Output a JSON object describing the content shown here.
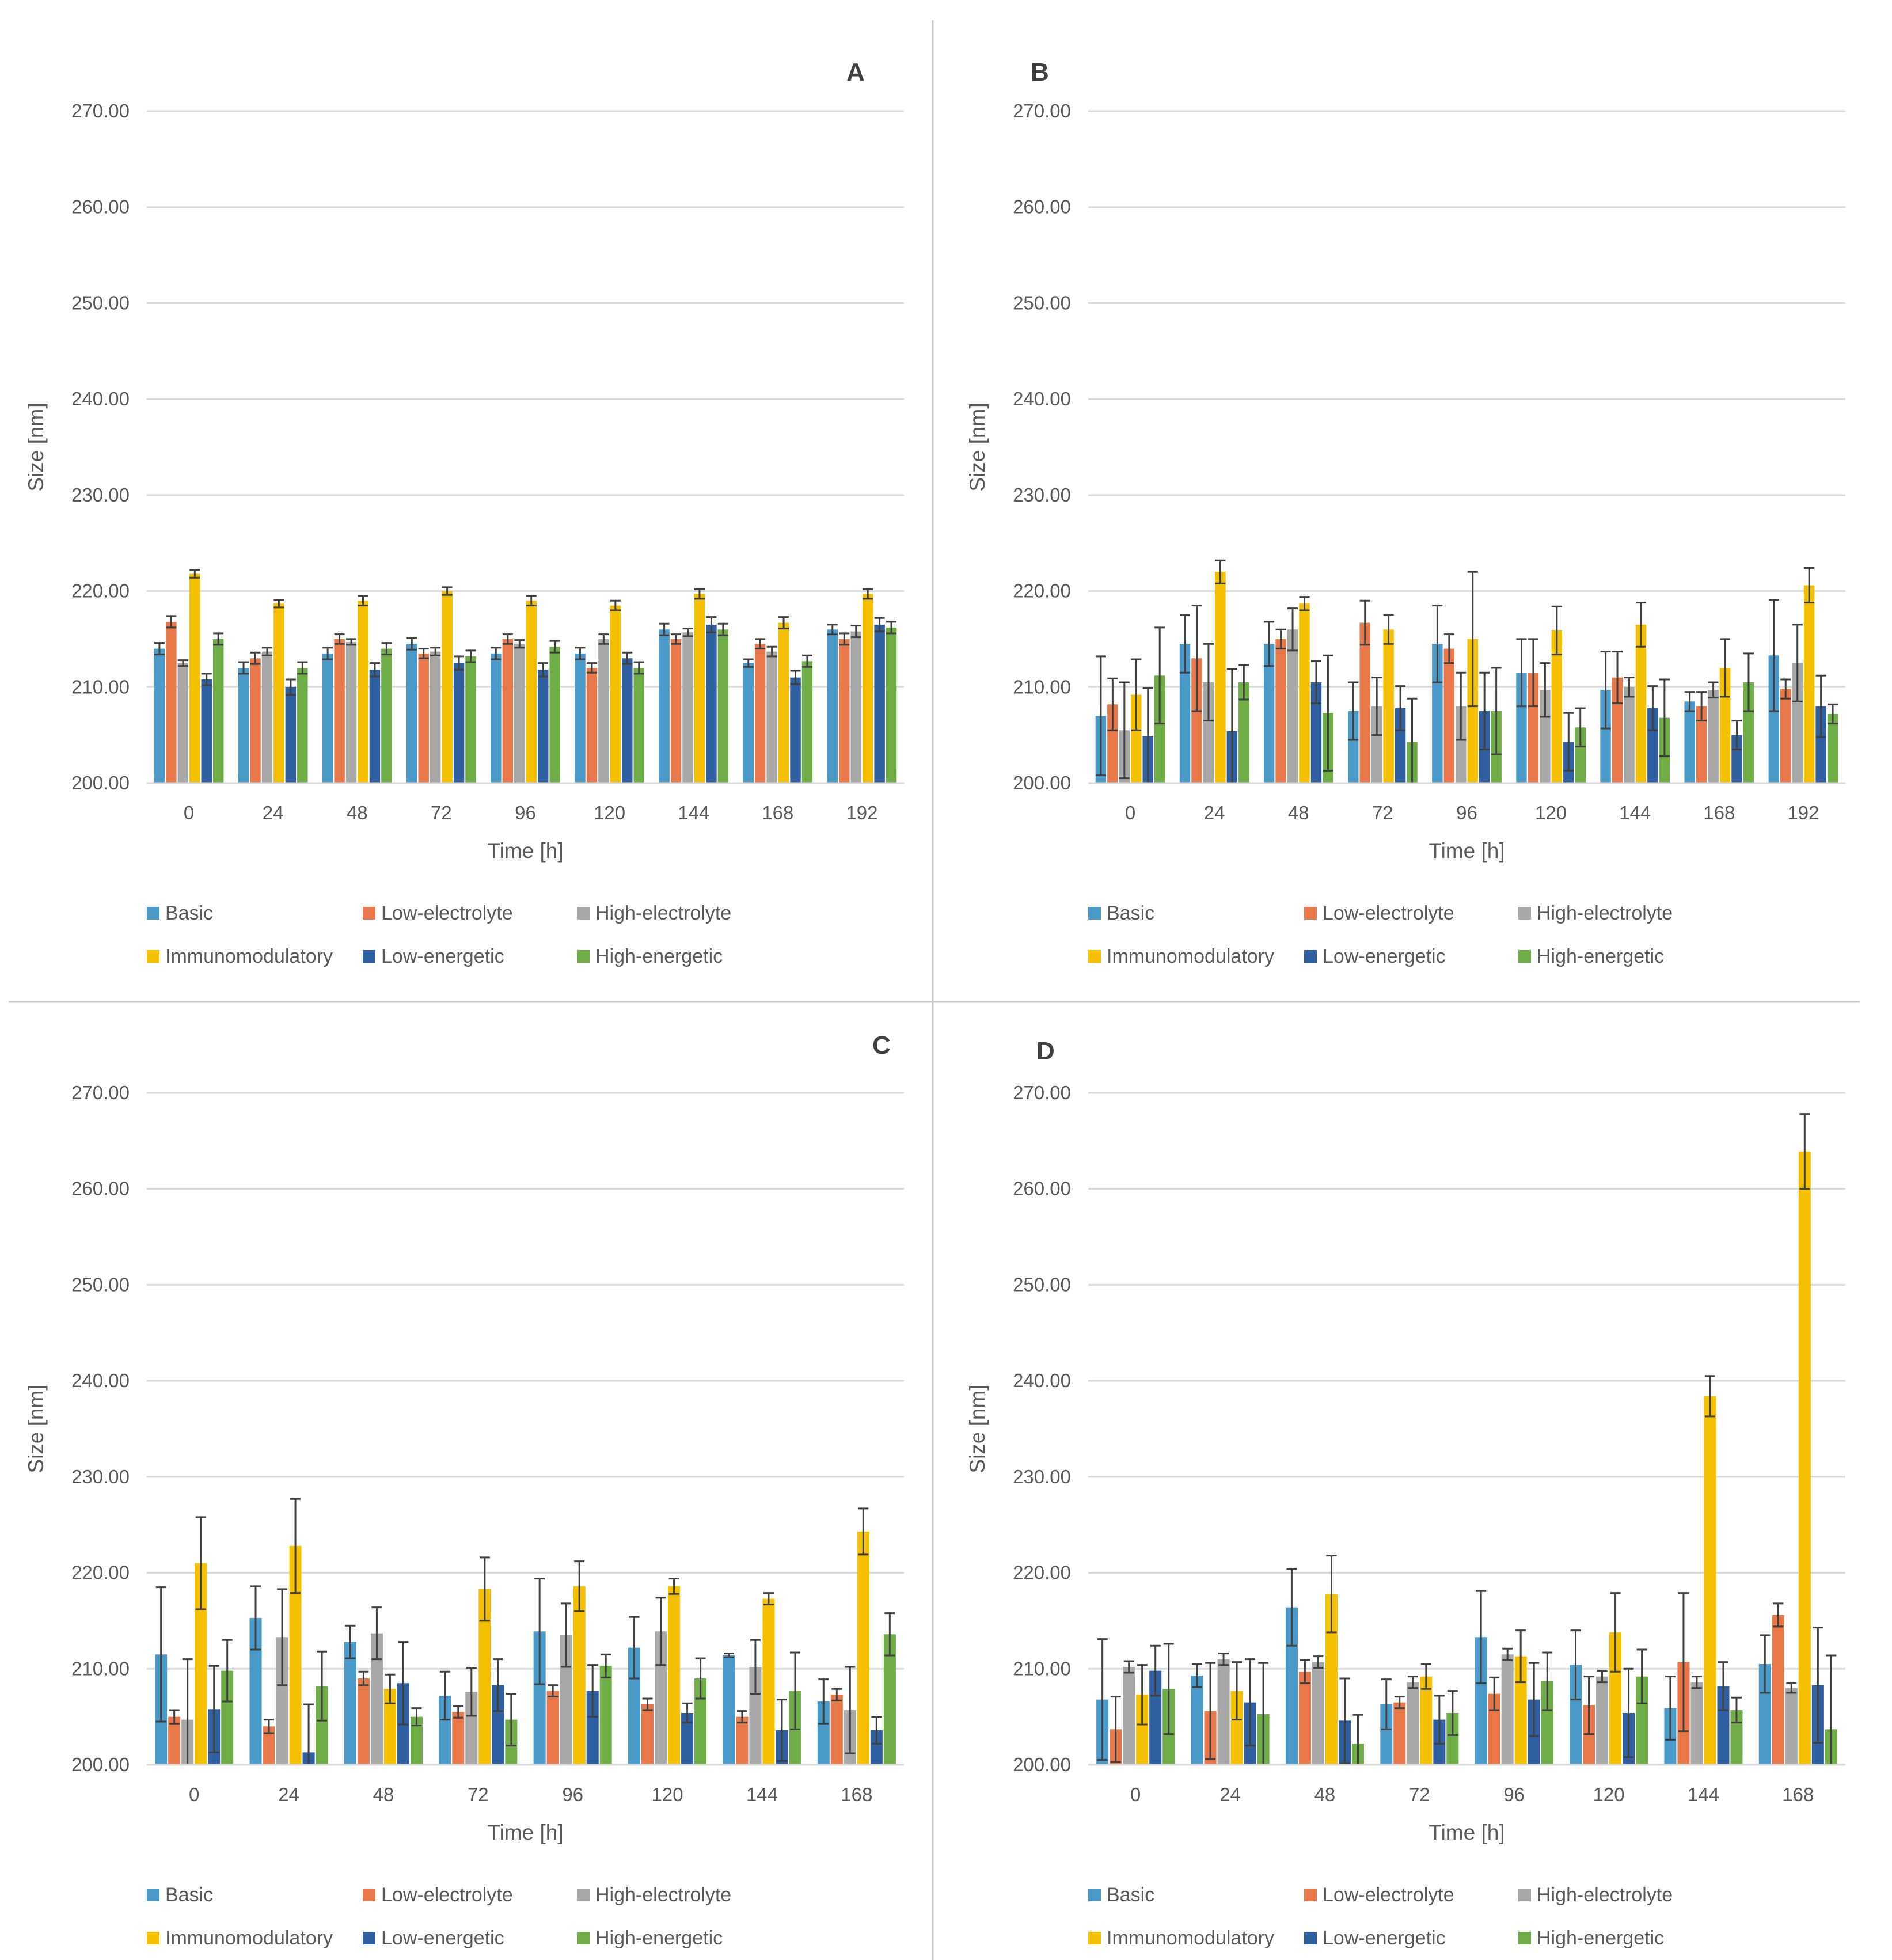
{
  "colors": {
    "Basic": "#4a9ac9",
    "Low-electrolyte": "#e8784a",
    "High-electrolyte": "#a8a8a8",
    "Immunomodulatory": "#f5c000",
    "Low-energetic": "#2e5fa0",
    "High-energetic": "#6fad47",
    "grid": "#d9d9d9",
    "divider": "#c8c8c8",
    "errorbar": "#404040"
  },
  "chart_data": [
    {
      "panel": "A",
      "type": "bar",
      "xlabel": "Time [h]",
      "ylabel": "Size [nm]",
      "ylim": [
        200,
        270
      ],
      "yticks": [
        "200.00",
        "210.00",
        "220.00",
        "230.00",
        "240.00",
        "250.00",
        "260.00",
        "270.00"
      ],
      "categories": [
        "0",
        "24",
        "48",
        "72",
        "96",
        "120",
        "144",
        "168",
        "192"
      ],
      "series": [
        {
          "name": "Basic",
          "values": [
            214.0,
            212.0,
            213.5,
            214.5,
            213.5,
            213.5,
            216.0,
            212.5,
            216.0
          ],
          "errors": [
            0.6,
            0.6,
            0.6,
            0.6,
            0.6,
            0.6,
            0.6,
            0.4,
            0.5
          ]
        },
        {
          "name": "Low-electrolyte",
          "values": [
            216.8,
            213.0,
            215.0,
            213.5,
            215.0,
            212.0,
            215.0,
            214.5,
            215.0
          ],
          "errors": [
            0.6,
            0.6,
            0.5,
            0.5,
            0.5,
            0.5,
            0.5,
            0.5,
            0.6
          ]
        },
        {
          "name": "High-electrolyte",
          "values": [
            212.5,
            213.7,
            214.7,
            213.7,
            214.5,
            215.0,
            215.7,
            213.7,
            215.8
          ],
          "errors": [
            0.3,
            0.4,
            0.3,
            0.4,
            0.4,
            0.5,
            0.4,
            0.5,
            0.6
          ]
        },
        {
          "name": "Immunomodulatory",
          "values": [
            221.8,
            218.7,
            219.0,
            220.0,
            219.0,
            218.5,
            219.7,
            216.7,
            219.7
          ],
          "errors": [
            0.4,
            0.4,
            0.5,
            0.4,
            0.5,
            0.5,
            0.5,
            0.6,
            0.5
          ]
        },
        {
          "name": "Low-energetic",
          "values": [
            210.8,
            210.0,
            211.8,
            212.5,
            211.8,
            213.0,
            216.5,
            211.0,
            216.5
          ],
          "errors": [
            0.6,
            0.8,
            0.7,
            0.7,
            0.7,
            0.6,
            0.8,
            0.7,
            0.7
          ]
        },
        {
          "name": "High-energetic",
          "values": [
            215.0,
            212.0,
            214.0,
            213.2,
            214.2,
            212.0,
            216.0,
            212.7,
            216.2
          ],
          "errors": [
            0.6,
            0.6,
            0.6,
            0.6,
            0.6,
            0.6,
            0.6,
            0.6,
            0.6
          ]
        }
      ],
      "legend": [
        "Basic",
        "Low-electrolyte",
        "High-electrolyte",
        "Immunomodulatory",
        "Low-energetic",
        "High-energetic"
      ]
    },
    {
      "panel": "B",
      "type": "bar",
      "xlabel": "Time [h]",
      "ylabel": "Size [nm]",
      "ylim": [
        200,
        270
      ],
      "yticks": [
        "200.00",
        "210.00",
        "220.00",
        "230.00",
        "240.00",
        "250.00",
        "260.00",
        "270.00"
      ],
      "categories": [
        "0",
        "24",
        "48",
        "72",
        "96",
        "120",
        "144",
        "168",
        "192"
      ],
      "series": [
        {
          "name": "Basic",
          "values": [
            207.0,
            214.5,
            214.5,
            207.5,
            214.5,
            211.5,
            209.7,
            208.5,
            213.3
          ],
          "errors": [
            6.2,
            3.0,
            2.3,
            3.0,
            4.0,
            3.5,
            4.0,
            1.0,
            5.8
          ]
        },
        {
          "name": "Low-electrolyte",
          "values": [
            208.2,
            213.0,
            215.0,
            216.7,
            214.0,
            211.5,
            211.0,
            208.0,
            209.8
          ],
          "errors": [
            2.7,
            5.5,
            1.0,
            2.3,
            1.5,
            3.5,
            2.7,
            1.5,
            1.0
          ]
        },
        {
          "name": "High-electrolyte",
          "values": [
            205.5,
            210.5,
            216.0,
            208.0,
            208.0,
            209.7,
            210.0,
            209.7,
            212.5
          ],
          "errors": [
            5.0,
            4.0,
            2.2,
            3.0,
            3.5,
            2.8,
            1.0,
            0.8,
            4.0
          ]
        },
        {
          "name": "Immunomodulatory",
          "values": [
            209.2,
            222.0,
            218.7,
            216.0,
            215.0,
            215.9,
            216.5,
            212.0,
            220.6
          ],
          "errors": [
            3.7,
            1.2,
            0.7,
            1.5,
            7.0,
            2.5,
            2.3,
            3.0,
            1.8
          ]
        },
        {
          "name": "Low-energetic",
          "values": [
            204.9,
            205.4,
            210.5,
            207.8,
            207.5,
            204.3,
            207.8,
            205.0,
            208.0
          ],
          "errors": [
            5.0,
            6.5,
            2.2,
            2.3,
            4.0,
            3.0,
            2.3,
            1.5,
            3.2
          ]
        },
        {
          "name": "High-energetic",
          "values": [
            211.2,
            210.5,
            207.3,
            204.3,
            207.5,
            205.8,
            206.8,
            210.5,
            207.2
          ],
          "errors": [
            5.0,
            1.8,
            6.0,
            4.5,
            4.5,
            2.0,
            4.0,
            3.0,
            1.0
          ]
        }
      ],
      "legend": [
        "Basic",
        "Low-electrolyte",
        "High-electrolyte",
        "Immunomodulatory",
        "Low-energetic",
        "High-energetic"
      ]
    },
    {
      "panel": "C",
      "type": "bar",
      "xlabel": "Time [h]",
      "ylabel": "Size [nm]",
      "ylim": [
        200,
        270
      ],
      "yticks": [
        "200.00",
        "210.00",
        "220.00",
        "230.00",
        "240.00",
        "250.00",
        "260.00",
        "270.00"
      ],
      "categories": [
        "0",
        "24",
        "48",
        "72",
        "96",
        "120",
        "144",
        "168"
      ],
      "series": [
        {
          "name": "Basic",
          "values": [
            211.5,
            215.3,
            212.8,
            207.2,
            213.9,
            212.2,
            211.4,
            206.6
          ],
          "errors": [
            7.0,
            3.3,
            1.7,
            2.5,
            5.5,
            3.2,
            0.2,
            2.3
          ]
        },
        {
          "name": "Low-electrolyte",
          "values": [
            205.0,
            204.0,
            209.0,
            205.5,
            207.7,
            206.3,
            205.0,
            207.3
          ],
          "errors": [
            0.7,
            0.7,
            0.7,
            0.6,
            0.6,
            0.6,
            0.6,
            0.6
          ]
        },
        {
          "name": "High-electrolyte",
          "values": [
            204.7,
            213.3,
            213.7,
            207.6,
            213.5,
            213.9,
            210.2,
            205.7
          ],
          "errors": [
            6.3,
            5.0,
            2.7,
            2.5,
            3.3,
            3.5,
            2.8,
            4.5
          ]
        },
        {
          "name": "Immunomodulatory",
          "values": [
            221.0,
            222.8,
            207.9,
            218.3,
            218.6,
            218.6,
            217.3,
            224.3
          ],
          "errors": [
            4.8,
            4.9,
            1.5,
            3.3,
            2.6,
            0.8,
            0.6,
            2.4
          ]
        },
        {
          "name": "Low-energetic",
          "values": [
            205.8,
            201.3,
            208.5,
            208.3,
            207.7,
            205.4,
            203.6,
            203.6
          ],
          "errors": [
            4.5,
            5.0,
            4.3,
            2.7,
            2.7,
            1.0,
            3.2,
            1.4
          ]
        },
        {
          "name": "High-energetic",
          "values": [
            209.8,
            208.2,
            205.0,
            204.7,
            210.3,
            209.0,
            207.7,
            213.6
          ],
          "errors": [
            3.2,
            3.6,
            0.9,
            2.7,
            1.2,
            2.1,
            4.0,
            2.2
          ]
        }
      ],
      "legend": [
        "Basic",
        "Low-electrolyte",
        "High-electrolyte",
        "Immunomodulatory",
        "Low-energetic",
        "High-energetic"
      ]
    },
    {
      "panel": "D",
      "type": "bar",
      "xlabel": "Time [h]",
      "ylabel": "Size [nm]",
      "ylim": [
        200,
        270
      ],
      "yticks": [
        "200.00",
        "210.00",
        "220.00",
        "230.00",
        "240.00",
        "250.00",
        "260.00",
        "270.00"
      ],
      "categories": [
        "0",
        "24",
        "48",
        "72",
        "96",
        "120",
        "144",
        "168"
      ],
      "series": [
        {
          "name": "Basic",
          "values": [
            206.8,
            209.3,
            216.4,
            206.3,
            213.3,
            210.4,
            205.9,
            210.5
          ],
          "errors": [
            6.3,
            1.2,
            4.0,
            2.6,
            4.8,
            3.6,
            3.3,
            3.0
          ]
        },
        {
          "name": "Low-electrolyte",
          "values": [
            203.7,
            205.6,
            209.7,
            206.5,
            207.4,
            206.2,
            210.7,
            215.6
          ],
          "errors": [
            3.4,
            5.0,
            1.2,
            0.6,
            1.7,
            3.0,
            7.2,
            1.2
          ]
        },
        {
          "name": "High-electrolyte",
          "values": [
            210.2,
            211.0,
            210.7,
            208.6,
            211.5,
            209.2,
            208.6,
            208.0
          ],
          "errors": [
            0.6,
            0.6,
            0.6,
            0.6,
            0.6,
            0.6,
            0.6,
            0.5
          ]
        },
        {
          "name": "Immunomodulatory",
          "values": [
            207.3,
            207.7,
            217.8,
            209.2,
            211.3,
            213.8,
            238.4,
            263.9
          ],
          "errors": [
            3.1,
            3.0,
            4.0,
            1.3,
            2.7,
            4.1,
            2.1,
            3.9
          ]
        },
        {
          "name": "Low-energetic",
          "values": [
            209.8,
            206.5,
            204.6,
            204.7,
            206.8,
            205.4,
            208.2,
            208.3
          ],
          "errors": [
            2.6,
            4.5,
            4.4,
            2.5,
            3.8,
            4.6,
            2.5,
            6.0
          ]
        },
        {
          "name": "High-energetic",
          "values": [
            207.9,
            205.3,
            202.2,
            205.4,
            208.7,
            209.2,
            205.7,
            203.7
          ],
          "errors": [
            4.7,
            5.3,
            3.0,
            2.3,
            3.0,
            2.8,
            1.3,
            7.7
          ]
        }
      ],
      "legend": [
        "Basic",
        "Low-electrolyte",
        "High-electrolyte",
        "Immunomodulatory",
        "Low-energetic",
        "High-energetic"
      ]
    }
  ]
}
